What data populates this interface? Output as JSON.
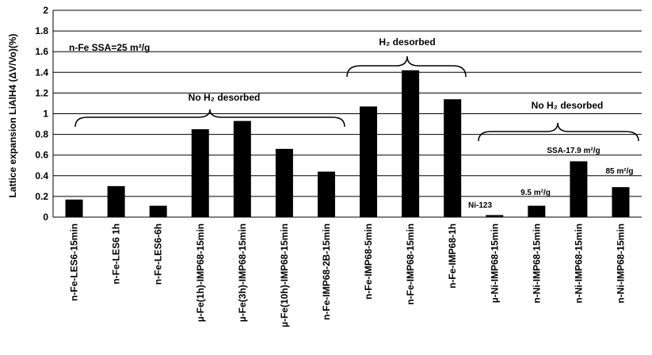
{
  "chart_data": {
    "type": "bar",
    "ylabel": "Lattice expansion LiAlH4 (ΔV/Vo)(%)",
    "ylim": [
      0,
      2
    ],
    "yticks": [
      "0",
      "0.2",
      "0.4",
      "0.6",
      "0.8",
      "1",
      "1.2",
      "1.4",
      "1.6",
      "1.8",
      "2"
    ],
    "grid": true,
    "bar_color": "#000000",
    "categories": [
      "n-Fe-LES6-15min",
      "n-Fe-LES6 1h",
      "n-Fe-LES6-6h",
      "µ-Fe(1h)-IMP68-15min",
      "µ-Fe(3h)-IMP68-15min",
      "µ-Fe(10h)-IMP68-15min",
      "n-Fe-IMP68-2B-15min",
      "n-Fe-IMP68-5min",
      "n-Fe-IMP68-15min",
      "n-Fe-IMP68-1h",
      "µ-Ni-IMP68-15min",
      "n-Ni-IMP68-15min",
      "n-Ni-IMP68-15min",
      "n-Ni-IMP68-15min"
    ],
    "values": [
      0.17,
      0.3,
      0.11,
      0.85,
      0.93,
      0.66,
      0.44,
      1.07,
      1.42,
      1.14,
      0.02,
      0.11,
      0.54,
      0.29
    ],
    "annotations": {
      "ssa_fe": "n-Fe SSA=25 m²/g",
      "no_h2_left": "No H₂ desorbed",
      "h2_desorbed": "H₂ desorbed",
      "no_h2_right": "No H₂ desorbed",
      "ni123": "Ni-123",
      "ssa_95": "9.5 m²/g",
      "ssa_179": "SSA-17.9 m²/g",
      "ssa_85": "85 m²/g"
    }
  }
}
